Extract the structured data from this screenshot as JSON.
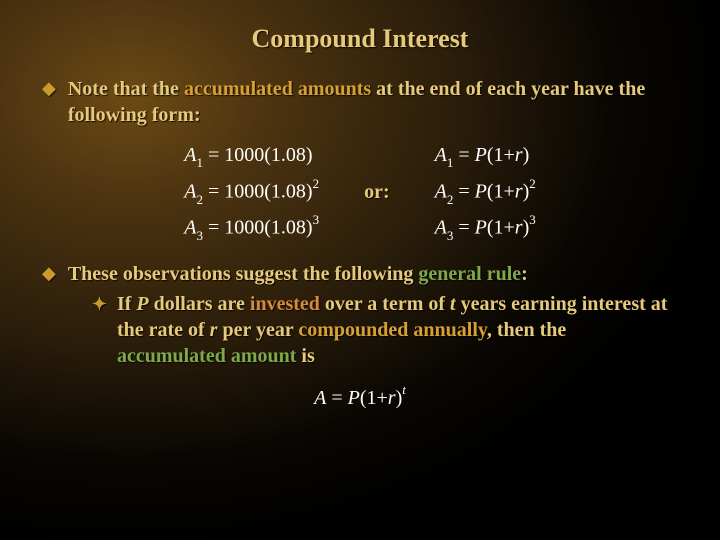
{
  "title": "Compound Interest",
  "bullet1": {
    "pre": "Note that the ",
    "accum": "accumulated amounts",
    "post": " at the end of each year have the following form:"
  },
  "equations": {
    "left": {
      "a1": {
        "lhs_var": "A",
        "lhs_sub": "1",
        "eq": " = ",
        "rhs": "1000(1.08)"
      },
      "a2": {
        "lhs_var": "A",
        "lhs_sub": "2",
        "eq": " = ",
        "rhs": "1000(1.08)",
        "sup": "2"
      },
      "a3": {
        "lhs_var": "A",
        "lhs_sub": "3",
        "eq": " = ",
        "rhs": "1000(1.08)",
        "sup": "3"
      }
    },
    "or_label": "or:",
    "right": {
      "a1": {
        "lhs_var": "A",
        "lhs_sub": "1",
        "eq": " = ",
        "p": "P",
        "mid": "(1+",
        "r": "r",
        "close": ")"
      },
      "a2": {
        "lhs_var": "A",
        "lhs_sub": "2",
        "eq": " = ",
        "p": "P",
        "mid": "(1+",
        "r": "r",
        "close": ")",
        "sup": "2"
      },
      "a3": {
        "lhs_var": "A",
        "lhs_sub": "3",
        "eq": " = ",
        "p": "P",
        "mid": "(1+",
        "r": "r",
        "close": ")",
        "sup": "3"
      }
    }
  },
  "bullet2": {
    "pre": "These observations suggest the following ",
    "gen": "general rule",
    "colon": ":"
  },
  "sub": {
    "t1": "If ",
    "P": "P",
    "t2": " dollars are ",
    "inv": "invested",
    "t3": " over a term of ",
    "tvar": "t",
    "t4": " years earning interest at the rate of ",
    "rvar": "r",
    "t5": " per year ",
    "comp": "compounded annually",
    "t6": ", then the ",
    "accum": "accumulated amount",
    "t7": " is"
  },
  "final": {
    "A": "A",
    "eq": " = ",
    "P": "P",
    "mid": "(1+",
    "r": "r",
    "close": ")",
    "supvar": "t"
  }
}
